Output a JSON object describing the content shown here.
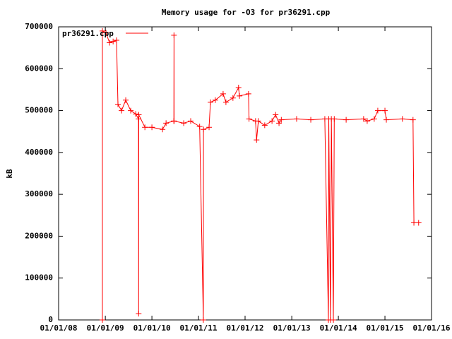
{
  "chart_data": {
    "type": "line",
    "title": "Memory usage for -O3 for pr36291.cpp",
    "y_label": "kB",
    "x": [
      "2008-12-09",
      "2008-12-09",
      "2009-01-06",
      "2009-02-03",
      "2009-03-03",
      "2009-03-30",
      "2009-04-10",
      "2009-05-08",
      "2009-06-10",
      "2009-07-19",
      "2009-08-27",
      "2009-09-18",
      "2009-09-19",
      "2009-09-20",
      "2009-11-07",
      "2010-01-01",
      "2010-03-25",
      "2010-04-22",
      "2010-06-22",
      "2010-06-23",
      "2010-06-24",
      "2010-09-07",
      "2010-11-01",
      "2011-01-10",
      "2011-02-08",
      "2011-02-09",
      "2011-03-25",
      "2011-04-05",
      "2011-05-13",
      "2011-07-13",
      "2011-08-04",
      "2011-09-28",
      "2011-11-11",
      "2011-11-18",
      "2012-01-28",
      "2012-02-01",
      "2012-03-23",
      "2012-03-31",
      "2012-04-14",
      "2012-06-03",
      "2012-07-30",
      "2012-08-27",
      "2012-09-23",
      "2012-10-11",
      "2013-02-08",
      "2013-05-30",
      "2013-09-17",
      "2013-10-15",
      "2013-10-18",
      "2013-10-31",
      "2013-11-07",
      "2013-11-23",
      "2013-11-30",
      "2014-03-03",
      "2014-07-18",
      "2014-08-15",
      "2014-10-09",
      "2014-11-06",
      "2015-01-01",
      "2015-01-12",
      "2015-05-18",
      "2015-08-09",
      "2015-08-16",
      "2015-09-22"
    ],
    "series": [
      {
        "name": "pr36291.cpp",
        "color": "#ff0000",
        "values": [
          0,
          690000,
          686000,
          662000,
          665000,
          668000,
          515000,
          500000,
          525000,
          500000,
          492000,
          480000,
          15000,
          490000,
          460000,
          460000,
          455000,
          470000,
          475000,
          680000,
          475000,
          470000,
          475000,
          462000,
          0,
          455000,
          460000,
          520000,
          525000,
          540000,
          520000,
          530000,
          555000,
          535000,
          540000,
          480000,
          475000,
          430000,
          475000,
          465000,
          475000,
          490000,
          470000,
          478000,
          480000,
          478000,
          480000,
          0,
          480000,
          0,
          480000,
          0,
          480000,
          478000,
          480000,
          475000,
          480000,
          500000,
          500000,
          478000,
          480000,
          478000,
          232000,
          232000
        ]
      }
    ],
    "xlim": [
      "2008-01-01",
      "2016-01-01"
    ],
    "xticks": [
      {
        "value": "2008-01-01",
        "label": "01/01/08"
      },
      {
        "value": "2009-01-01",
        "label": "01/01/09"
      },
      {
        "value": "2010-01-01",
        "label": "01/01/10"
      },
      {
        "value": "2011-01-01",
        "label": "01/01/11"
      },
      {
        "value": "2012-01-01",
        "label": "01/01/12"
      },
      {
        "value": "2013-01-01",
        "label": "01/01/13"
      },
      {
        "value": "2014-01-01",
        "label": "01/01/14"
      },
      {
        "value": "2015-01-01",
        "label": "01/01/15"
      },
      {
        "value": "2016-01-01",
        "label": "01/01/16"
      }
    ],
    "ylim": [
      0,
      700000
    ],
    "yticks": [
      0,
      100000,
      200000,
      300000,
      400000,
      500000,
      600000,
      700000
    ],
    "legend": "top-left"
  }
}
